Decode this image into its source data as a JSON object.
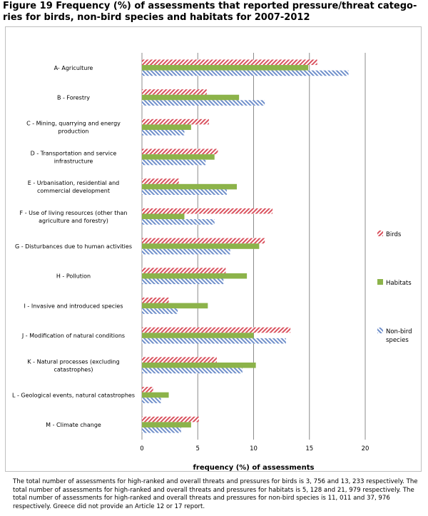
{
  "title": "Figure 19 Frequency (%) of assessments that reported pressure/threat catego-\nries for birds, non-bird species and habitats for 2007-2012",
  "footnote": "The total number of assessments for high-ranked  and overall threats and pressures for birds is 3, 756 and  13, 233 respectively.  The total number of assessments for high-ranked and overall threats and pressures for habitats is  5, 128 and 21, 979 respectively. The total number of assessments for high-ranked and overall threats and pressures for non-bird species is 11, 011 and 37, 976 respectively. Greece did not provide  an Article 12 or 17 report.",
  "colors": {
    "birds": "#d9525e",
    "habitats": "#8cb34a",
    "non_bird": "#6f8fca",
    "grid": "#8c8c8c"
  },
  "chart_data": {
    "type": "bar",
    "orientation": "horizontal",
    "categories": [
      [
        "A- Agriculture"
      ],
      [
        "B - Forestry"
      ],
      [
        "C - Mining, quarrying and energy",
        "production"
      ],
      [
        "D - Transportation and service",
        "infrastructure"
      ],
      [
        "E - Urbanisation, residential and",
        "commercial development"
      ],
      [
        "F - Use of living resources (other than",
        "agriculture and forestry)"
      ],
      [
        "G - Disturbances due to human activities"
      ],
      [
        "H - Pollution"
      ],
      [
        "I - Invasive and introduced species"
      ],
      [
        "J - Modification of natural conditions"
      ],
      [
        "K - Natural processes (excluding",
        "catastrophes)"
      ],
      [
        "L - Geological events, natural catastrophes"
      ],
      [
        "M - Climate change"
      ]
    ],
    "series": [
      {
        "name": "Birds",
        "values": [
          15.7,
          5.8,
          6.0,
          6.8,
          3.3,
          11.7,
          11.0,
          7.5,
          2.4,
          13.3,
          6.7,
          1.0,
          5.1
        ]
      },
      {
        "name": "Habitats",
        "values": [
          14.9,
          8.7,
          4.4,
          6.5,
          8.5,
          3.8,
          10.5,
          9.4,
          5.9,
          10.0,
          10.2,
          2.4,
          4.4
        ]
      },
      {
        "name": "Non-bird species",
        "legend_lines": [
          "Non-bird",
          "species"
        ],
        "values": [
          18.5,
          11.0,
          3.8,
          5.7,
          7.6,
          6.5,
          7.9,
          7.3,
          3.2,
          12.9,
          9.0,
          1.7,
          3.5
        ]
      }
    ],
    "xlabel": "frequency (%) of assessments",
    "xlim": [
      0,
      20
    ],
    "xticks": [
      0,
      5,
      10,
      15,
      20
    ],
    "grid": "vertical",
    "legend_position": "right"
  }
}
